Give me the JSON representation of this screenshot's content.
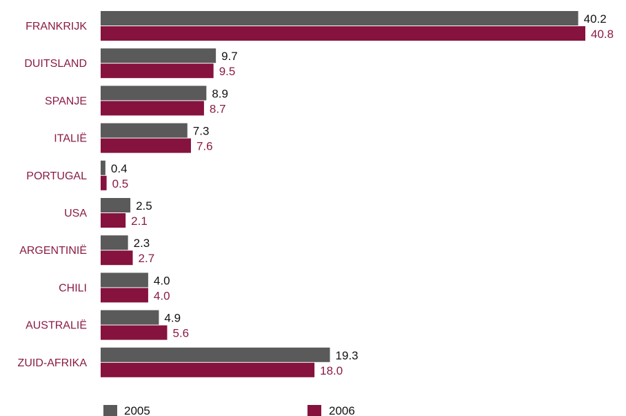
{
  "chart_data": {
    "type": "bar",
    "orientation": "horizontal",
    "categories": [
      "FRANKRIJK",
      "DUITSLAND",
      "SPANJE",
      "ITALIË",
      "PORTUGAL",
      "USA",
      "ARGENTINIË",
      "CHILI",
      "AUSTRALIË",
      "ZUID-AFRIKA"
    ],
    "series": [
      {
        "name": "2005",
        "color": "#5a5a5a",
        "values": [
          40.2,
          9.7,
          8.9,
          7.3,
          0.4,
          2.5,
          2.3,
          4.0,
          4.9,
          19.3
        ],
        "labels": [
          "40.2",
          "9.7",
          "8.9",
          "7.3",
          "0.4",
          "2.5",
          "2.3",
          "4.0",
          "4.9",
          "19.3"
        ]
      },
      {
        "name": "2006",
        "color": "#86123e",
        "values": [
          40.8,
          9.5,
          8.7,
          7.6,
          0.5,
          2.1,
          2.7,
          4.0,
          5.6,
          18.0
        ],
        "labels": [
          "40.8",
          "9.5",
          "8.7",
          "7.6",
          "0.5",
          "2.1",
          "2.7",
          "4.0",
          "5.6",
          "18.0"
        ]
      }
    ],
    "xlim": [
      0,
      40.8
    ],
    "grid": false,
    "legend_position": "bottom"
  },
  "colors": {
    "category_label": "#8a1a45",
    "value_label_2005": "#111111",
    "value_label_2006": "#8a1a45"
  }
}
